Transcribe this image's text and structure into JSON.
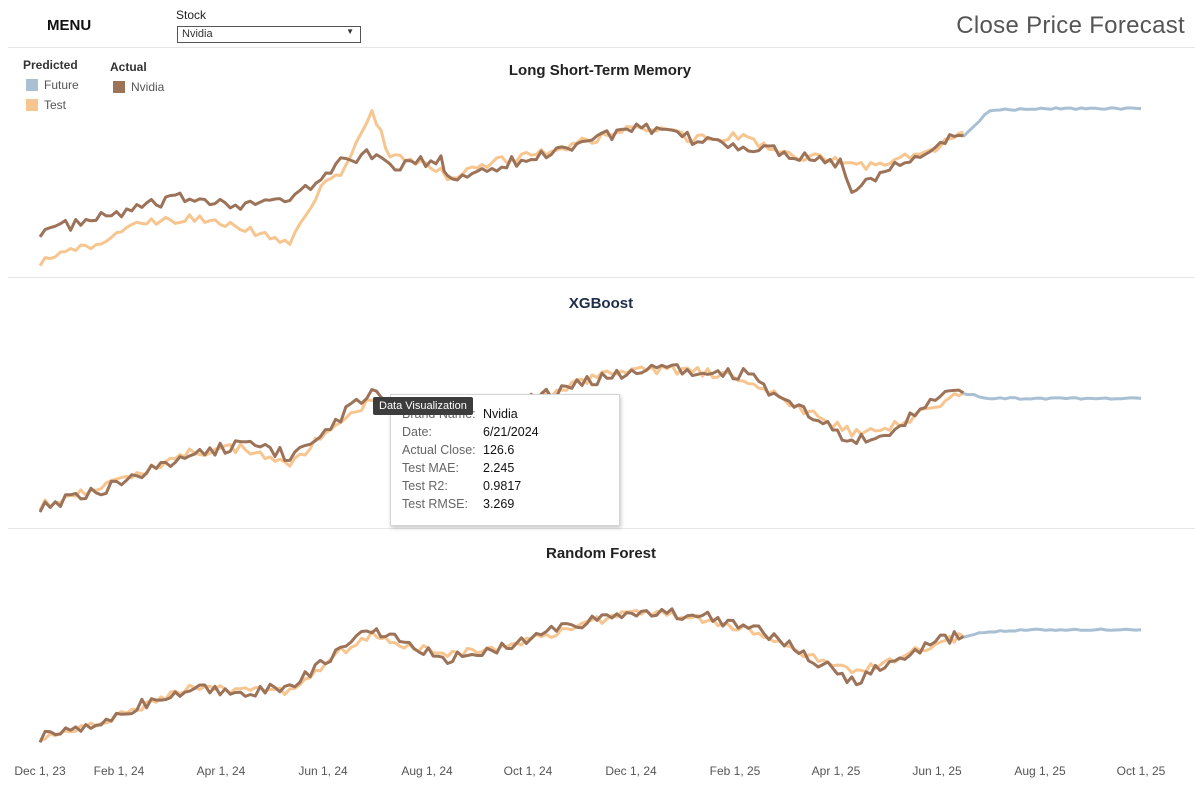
{
  "menu": {
    "label": "MENU"
  },
  "stock": {
    "label": "Stock",
    "selected": "Nvidia"
  },
  "page_title": "Close Price Forecast",
  "legend": {
    "predicted_title": "Predicted",
    "predicted_items": [
      {
        "label": "Future",
        "color": "#a9bfd4"
      },
      {
        "label": "Test",
        "color": "#f7c590"
      }
    ],
    "actual_title": "Actual",
    "actual_items": [
      {
        "label": "Nvidia",
        "color": "#9c7258"
      }
    ]
  },
  "x_ticks": [
    "Dec 1, 23",
    "Feb 1, 24",
    "Apr 1, 24",
    "Jun 1, 24",
    "Aug 1, 24",
    "Oct 1, 24",
    "Dec 1, 24",
    "Feb 1, 25",
    "Apr 1, 25",
    "Jun 1, 25",
    "Aug 1, 25",
    "Oct 1, 25"
  ],
  "colors": {
    "actual": "#9c7258",
    "test": "#f7c590",
    "future": "#a9bfd4"
  },
  "chart_data": [
    {
      "type": "line",
      "title": "Long Short-Term Memory",
      "x": [
        "2023-12-01",
        "2024-01-01",
        "2024-02-01",
        "2024-03-01",
        "2024-04-01",
        "2024-05-01",
        "2024-05-20",
        "2024-06-01",
        "2024-06-20",
        "2024-07-01",
        "2024-08-01",
        "2024-08-05",
        "2024-09-01",
        "2024-10-01",
        "2024-11-01",
        "2024-12-01",
        "2025-01-01",
        "2025-02-01",
        "2025-03-01",
        "2025-04-01",
        "2025-04-08",
        "2025-05-01",
        "2025-06-01",
        "2025-06-15"
      ],
      "series": [
        {
          "name": "Actual",
          "values": [
            0.2,
            0.26,
            0.34,
            0.4,
            0.36,
            0.38,
            0.5,
            0.62,
            0.65,
            0.58,
            0.62,
            0.5,
            0.58,
            0.64,
            0.75,
            0.8,
            0.74,
            0.7,
            0.66,
            0.6,
            0.44,
            0.58,
            0.72,
            0.76
          ]
        },
        {
          "name": "Test",
          "values": [
            0.02,
            0.12,
            0.24,
            0.28,
            0.22,
            0.12,
            0.45,
            0.55,
            0.9,
            0.65,
            0.55,
            0.52,
            0.6,
            0.66,
            0.74,
            0.82,
            0.74,
            0.76,
            0.64,
            0.62,
            0.58,
            0.6,
            0.7,
            0.78
          ]
        },
        {
          "name": "Future",
          "values": [
            null,
            null,
            null,
            null,
            null,
            null,
            null,
            null,
            null,
            null,
            null,
            null,
            null,
            null,
            null,
            null,
            null,
            null,
            null,
            null,
            null,
            null,
            null,
            0.76
          ]
        },
        {
          "name": "Future (extended)",
          "x": [
            "2025-06-15",
            "2025-07-01",
            "2025-08-01",
            "2025-10-01"
          ],
          "values": [
            0.76,
            0.91,
            0.92,
            0.92
          ]
        }
      ]
    },
    {
      "type": "line",
      "title": "XGBoost",
      "x": [
        "2023-12-01",
        "2024-01-01",
        "2024-02-01",
        "2024-03-01",
        "2024-04-01",
        "2024-05-01",
        "2024-06-01",
        "2024-06-20",
        "2024-07-01",
        "2024-08-05",
        "2024-09-01",
        "2024-10-01",
        "2024-11-01",
        "2024-12-01",
        "2025-01-01",
        "2025-02-01",
        "2025-03-01",
        "2025-04-08",
        "2025-05-01",
        "2025-06-01",
        "2025-06-15"
      ],
      "series": [
        {
          "name": "Actual",
          "values": [
            0.05,
            0.12,
            0.22,
            0.33,
            0.38,
            0.32,
            0.53,
            0.66,
            0.61,
            0.58,
            0.55,
            0.64,
            0.73,
            0.8,
            0.77,
            0.76,
            0.62,
            0.4,
            0.45,
            0.64,
            0.66
          ]
        },
        {
          "name": "Test",
          "values": [
            0.05,
            0.14,
            0.23,
            0.34,
            0.36,
            0.28,
            0.5,
            0.63,
            0.61,
            0.56,
            0.57,
            0.63,
            0.74,
            0.79,
            0.78,
            0.74,
            0.6,
            0.45,
            0.47,
            0.6,
            0.66
          ]
        },
        {
          "name": "Future",
          "x": [
            "2025-06-15",
            "2025-07-01",
            "2025-08-01",
            "2025-10-01"
          ],
          "values": [
            0.66,
            0.63,
            0.63,
            0.63
          ]
        }
      ]
    },
    {
      "type": "line",
      "title": "Random Forest",
      "x": [
        "2023-12-01",
        "2024-01-01",
        "2024-02-01",
        "2024-03-01",
        "2024-04-01",
        "2024-05-01",
        "2024-06-01",
        "2024-06-20",
        "2024-07-01",
        "2024-08-05",
        "2024-09-01",
        "2024-10-01",
        "2024-11-01",
        "2024-12-01",
        "2025-01-01",
        "2025-02-01",
        "2025-03-01",
        "2025-04-08",
        "2025-05-01",
        "2025-06-01",
        "2025-06-15"
      ],
      "series": [
        {
          "name": "Actual",
          "values": [
            0.05,
            0.12,
            0.24,
            0.33,
            0.32,
            0.34,
            0.58,
            0.68,
            0.64,
            0.52,
            0.56,
            0.66,
            0.74,
            0.8,
            0.78,
            0.72,
            0.6,
            0.38,
            0.48,
            0.64,
            0.65
          ]
        },
        {
          "name": "Test",
          "values": [
            0.05,
            0.12,
            0.23,
            0.34,
            0.33,
            0.32,
            0.56,
            0.66,
            0.62,
            0.54,
            0.57,
            0.65,
            0.74,
            0.8,
            0.76,
            0.7,
            0.58,
            0.44,
            0.5,
            0.62,
            0.65
          ]
        },
        {
          "name": "Future",
          "x": [
            "2025-06-15",
            "2025-07-01",
            "2025-08-01",
            "2025-10-01"
          ],
          "values": [
            0.65,
            0.68,
            0.69,
            0.69
          ]
        }
      ]
    }
  ],
  "tooltip": {
    "badge": "Data Visualization",
    "rows": [
      {
        "key": "Brand Name:",
        "value": "Nvidia"
      },
      {
        "key": "Date:",
        "value": "6/21/2024"
      },
      {
        "key": "Actual Close:",
        "value": "126.6"
      },
      {
        "key": "Test MAE:",
        "value": "2.245"
      },
      {
        "key": "Test R2:",
        "value": "0.9817"
      },
      {
        "key": "Test RMSE:",
        "value": "3.269"
      }
    ]
  }
}
